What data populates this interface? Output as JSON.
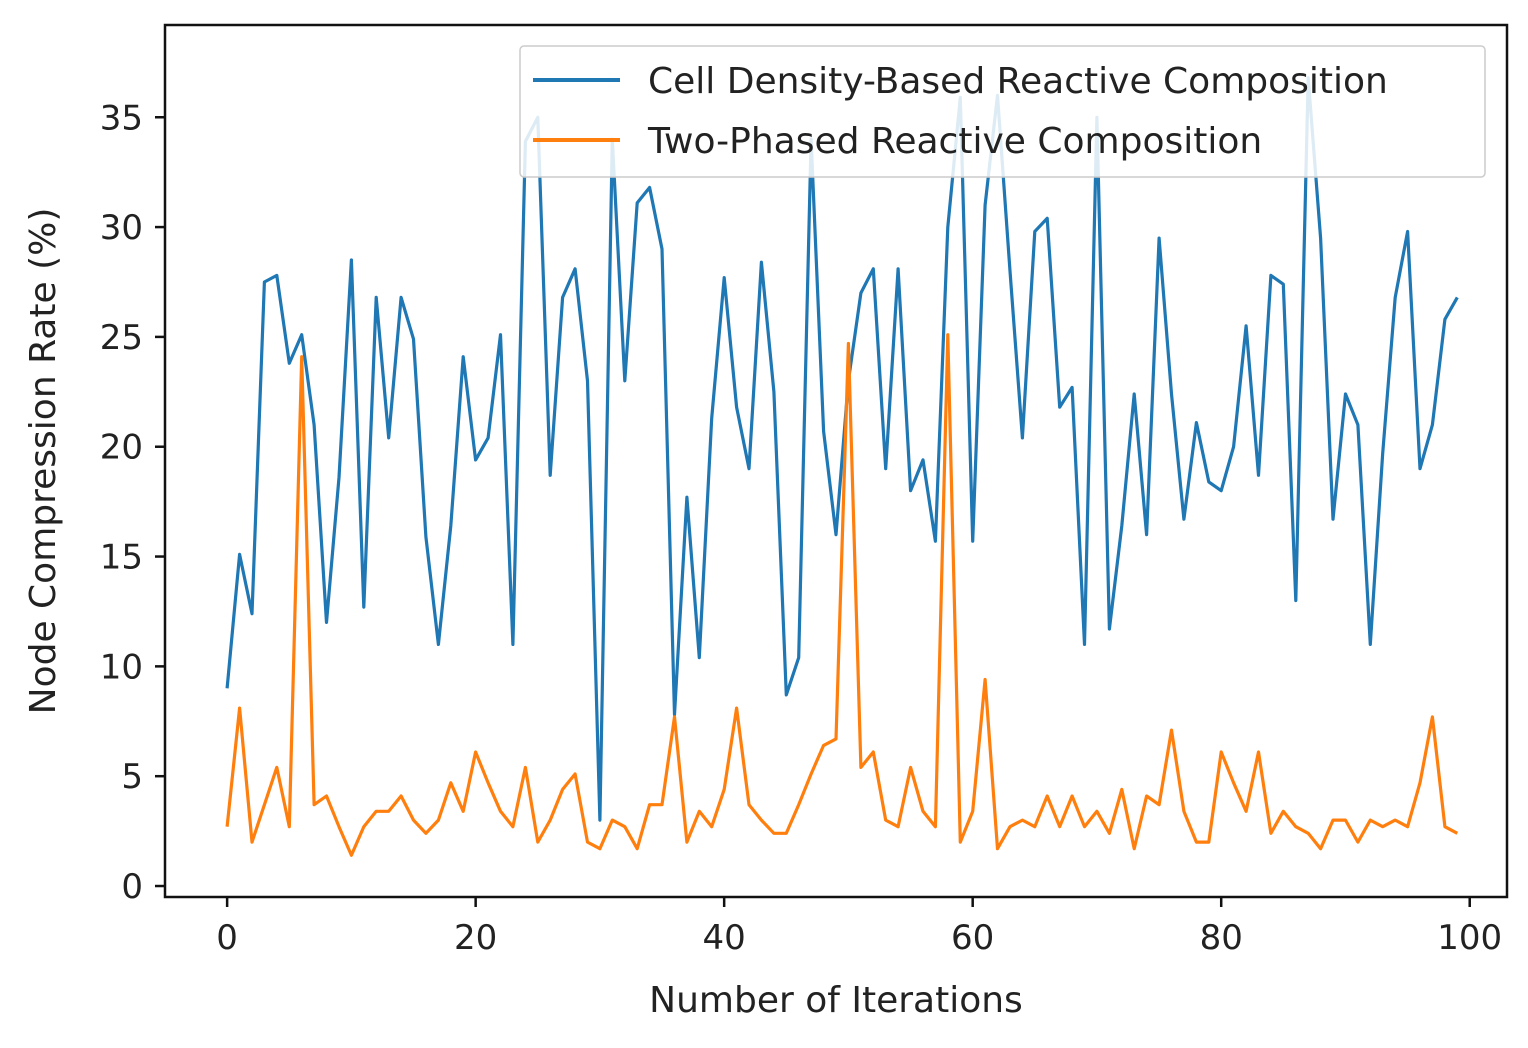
{
  "chart_data": {
    "type": "line",
    "title": "",
    "xlabel": "Number of Iterations",
    "ylabel": "Node Compression Rate (%)",
    "xlim": [
      -5,
      103
    ],
    "ylim": [
      -0.5,
      39.2
    ],
    "xticks": [
      0,
      20,
      40,
      60,
      80,
      100
    ],
    "yticks": [
      0,
      5,
      10,
      15,
      20,
      25,
      30,
      35
    ],
    "grid": false,
    "legend_position": "top-right",
    "x": [
      0,
      1,
      2,
      3,
      4,
      5,
      6,
      7,
      8,
      9,
      10,
      11,
      12,
      13,
      14,
      15,
      16,
      17,
      18,
      19,
      20,
      21,
      22,
      23,
      24,
      25,
      26,
      27,
      28,
      29,
      30,
      31,
      32,
      33,
      34,
      35,
      36,
      37,
      38,
      39,
      40,
      41,
      42,
      43,
      44,
      45,
      46,
      47,
      48,
      49,
      50,
      51,
      52,
      53,
      54,
      55,
      56,
      57,
      58,
      59,
      60,
      61,
      62,
      63,
      64,
      65,
      66,
      67,
      68,
      69,
      70,
      71,
      72,
      73,
      74,
      75,
      76,
      77,
      78,
      79,
      80,
      81,
      82,
      83,
      84,
      85,
      86,
      87,
      88,
      89,
      90,
      91,
      92,
      93,
      94,
      95,
      96,
      97,
      98,
      99
    ],
    "series": [
      {
        "name": "Cell Density-Based Reactive Composition",
        "color": "#1f77b4",
        "values": [
          9.0,
          15.1,
          12.4,
          27.5,
          27.8,
          23.8,
          25.1,
          21.0,
          12.0,
          18.6,
          28.5,
          12.7,
          26.8,
          20.4,
          26.8,
          24.9,
          15.9,
          11.0,
          16.4,
          24.1,
          19.4,
          20.4,
          25.1,
          11.0,
          33.9,
          35.0,
          18.7,
          26.8,
          28.1,
          23.0,
          3.0,
          34.0,
          23.0,
          31.1,
          31.8,
          29.0,
          7.8,
          17.7,
          10.4,
          21.3,
          27.7,
          21.8,
          19.0,
          28.4,
          22.5,
          8.7,
          10.4,
          34.0,
          20.7,
          16.0,
          23.0,
          27.0,
          28.1,
          19.0,
          28.1,
          18.0,
          19.4,
          15.7,
          30.0,
          35.9,
          15.7,
          31.0,
          36.0,
          28.0,
          20.4,
          29.8,
          30.4,
          21.8,
          22.7,
          11.0,
          35.0,
          11.7,
          16.4,
          22.4,
          16.0,
          29.5,
          22.4,
          16.7,
          21.1,
          18.4,
          18.0,
          20.0,
          25.5,
          18.7,
          27.8,
          27.4,
          13.0,
          36.8,
          29.5,
          16.7,
          22.4,
          21.0,
          11.0,
          19.7,
          26.8,
          29.8,
          19.0,
          21.0,
          25.8,
          26.8
        ]
      },
      {
        "name": "Two-Phased Reactive Composition",
        "color": "#ff7f0e",
        "values": [
          2.7,
          8.1,
          2.0,
          3.7,
          5.4,
          2.7,
          24.1,
          3.7,
          4.1,
          2.7,
          1.4,
          2.7,
          3.4,
          3.4,
          4.1,
          3.0,
          2.4,
          3.0,
          4.7,
          3.4,
          6.1,
          4.7,
          3.4,
          2.7,
          5.4,
          2.0,
          3.0,
          4.4,
          5.1,
          2.0,
          1.7,
          3.0,
          2.7,
          1.7,
          3.7,
          3.7,
          7.7,
          2.0,
          3.4,
          2.7,
          4.4,
          8.1,
          3.7,
          3.0,
          2.4,
          2.4,
          3.7,
          5.1,
          6.4,
          6.7,
          24.7,
          5.4,
          6.1,
          3.0,
          2.7,
          5.4,
          3.4,
          2.7,
          25.1,
          2.0,
          3.4,
          9.4,
          1.7,
          2.7,
          3.0,
          2.7,
          4.1,
          2.7,
          4.1,
          2.7,
          3.4,
          2.4,
          4.4,
          1.7,
          4.1,
          3.7,
          7.1,
          3.4,
          2.0,
          2.0,
          6.1,
          4.7,
          3.4,
          6.1,
          2.4,
          3.4,
          2.7,
          2.4,
          1.7,
          3.0,
          3.0,
          2.0,
          3.0,
          2.7,
          3.0,
          2.7,
          4.7,
          7.7,
          2.7,
          2.4
        ]
      }
    ]
  }
}
